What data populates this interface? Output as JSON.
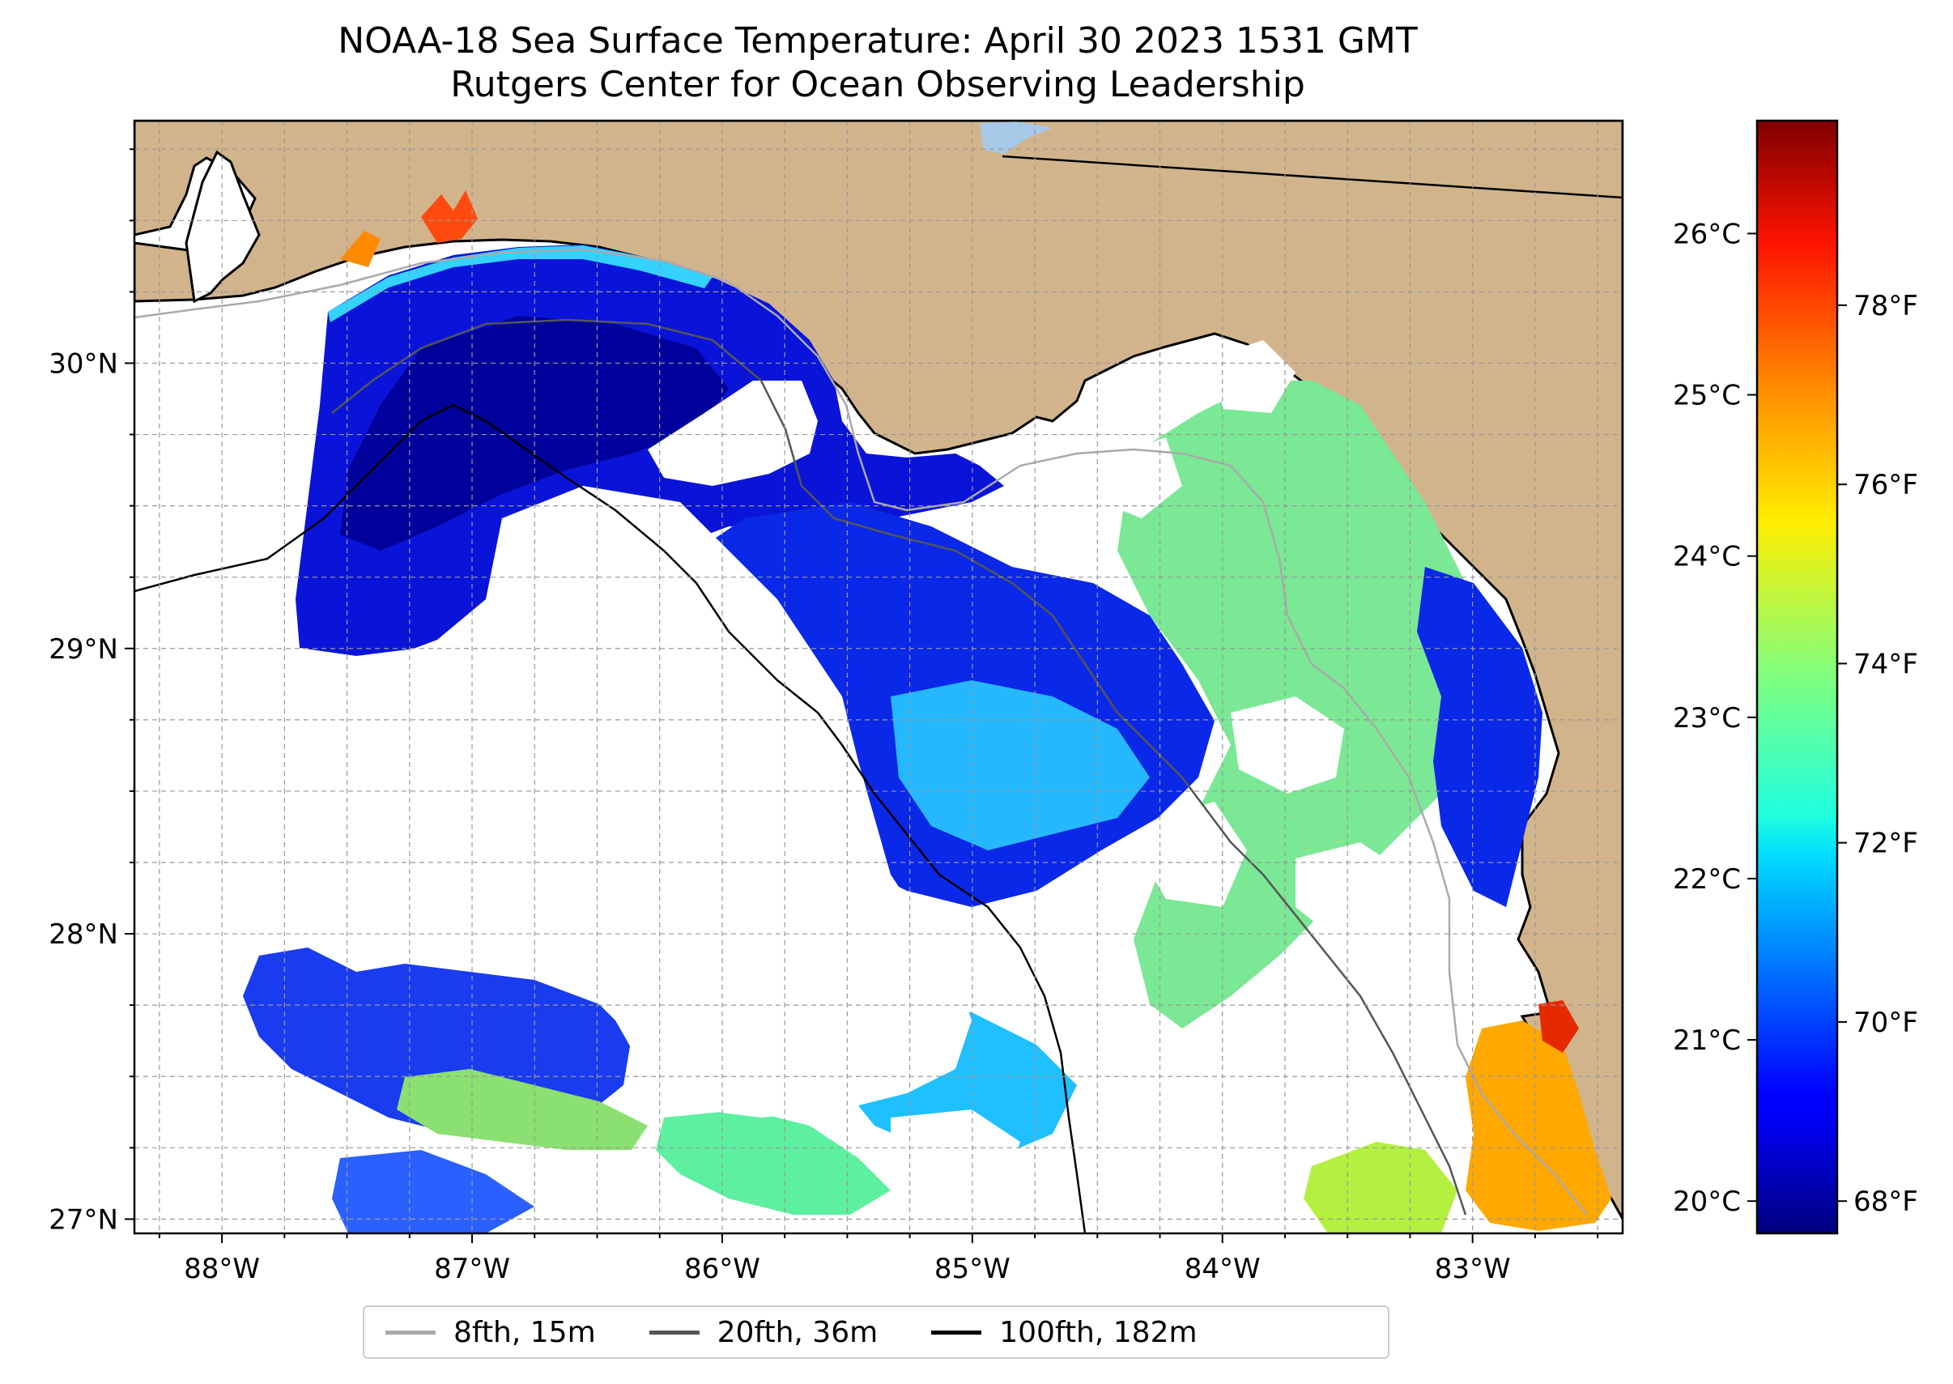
{
  "title": {
    "line1": "NOAA-18 Sea Surface Temperature: April 30 2023 1531 GMT",
    "line2": "Rutgers Center for Ocean Observing Leadership"
  },
  "map": {
    "lon_range": [
      -88.35,
      -82.4
    ],
    "lat_range": [
      26.95,
      30.85
    ],
    "lon_ticks": [
      {
        "value": -88,
        "label": "88°W"
      },
      {
        "value": -87,
        "label": "87°W"
      },
      {
        "value": -86,
        "label": "86°W"
      },
      {
        "value": -85,
        "label": "85°W"
      },
      {
        "value": -84,
        "label": "84°W"
      },
      {
        "value": -83,
        "label": "83°W"
      }
    ],
    "lat_ticks": [
      {
        "value": 27,
        "label": "27°N"
      },
      {
        "value": 28,
        "label": "28°N"
      },
      {
        "value": 29,
        "label": "29°N"
      },
      {
        "value": 30,
        "label": "30°N"
      }
    ],
    "gridlines": true,
    "land_color": "#d2b48c",
    "no_data_color": "#ffffff"
  },
  "colorbar": {
    "colormap": "jet",
    "celsius_ticks": [
      {
        "value": 20,
        "label": "20°C"
      },
      {
        "value": 21,
        "label": "21°C"
      },
      {
        "value": 22,
        "label": "22°C"
      },
      {
        "value": 23,
        "label": "23°C"
      },
      {
        "value": 24,
        "label": "24°C"
      },
      {
        "value": 25,
        "label": "25°C"
      },
      {
        "value": 26,
        "label": "26°C"
      }
    ],
    "fahrenheit_ticks": [
      {
        "value": 68,
        "label": "68°F"
      },
      {
        "value": 70,
        "label": "70°F"
      },
      {
        "value": 72,
        "label": "72°F"
      },
      {
        "value": 74,
        "label": "74°F"
      },
      {
        "value": 76,
        "label": "76°F"
      },
      {
        "value": 78,
        "label": "78°F"
      }
    ],
    "celsius_range": [
      19.8,
      26.7
    ]
  },
  "legend": {
    "items": [
      {
        "label": "8fth, 15m",
        "color": "#aaaaaa"
      },
      {
        "label": "20fth, 36m",
        "color": "#555555"
      },
      {
        "label": "100fth, 182m",
        "color": "#000000"
      }
    ]
  }
}
